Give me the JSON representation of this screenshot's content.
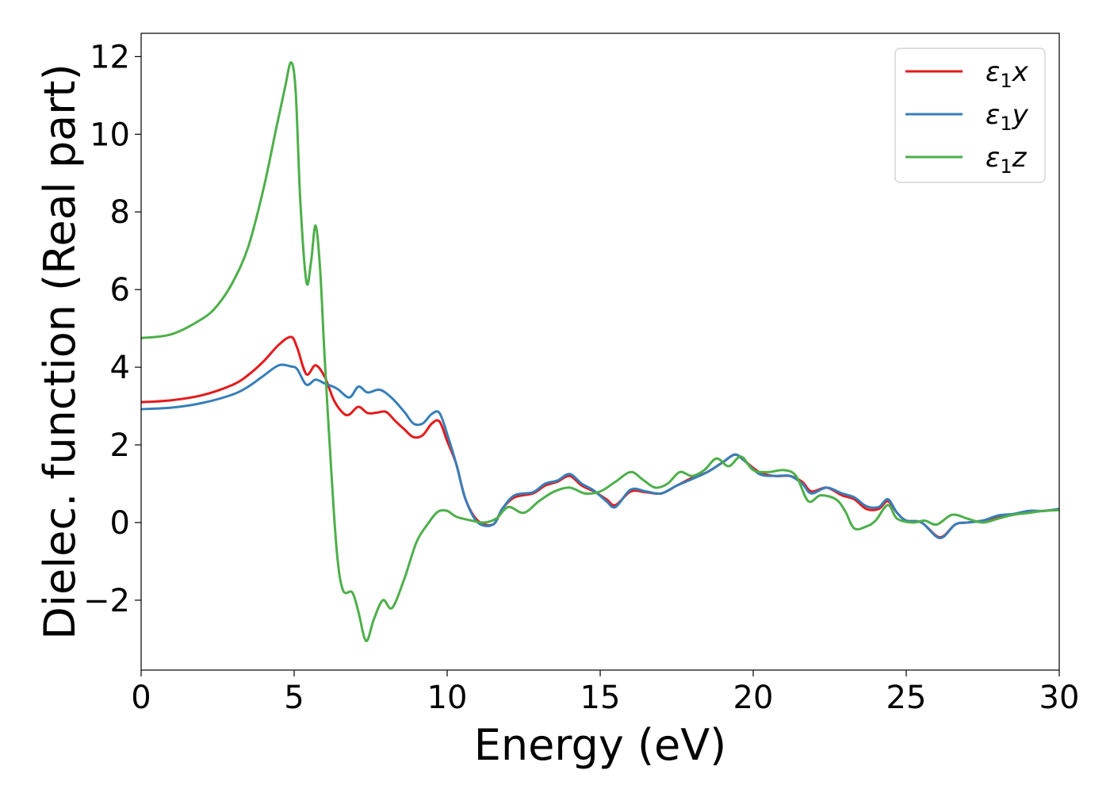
{
  "chart_data": {
    "type": "line",
    "xlabel": "Energy (eV)",
    "ylabel": "Dielec. function (Real part)",
    "xlim": [
      0,
      30
    ],
    "ylim": [
      -3.8,
      12.6
    ],
    "xticks": [
      0,
      5,
      10,
      15,
      20,
      25,
      30
    ],
    "xtick_labels": [
      "0",
      "5",
      "10",
      "15",
      "20",
      "25",
      "30"
    ],
    "yticks": [
      -2,
      0,
      2,
      4,
      6,
      8,
      10,
      12
    ],
    "ytick_labels": [
      "−2",
      "0",
      "2",
      "4",
      "6",
      "8",
      "10",
      "12"
    ],
    "grid": false,
    "legend_position": "top-right",
    "series": [
      {
        "name": "ε₁x",
        "legend_main": "ε",
        "legend_sub": "1",
        "legend_tail": "x",
        "color": "#e41a1c",
        "points": [
          [
            0,
            3.1
          ],
          [
            1,
            3.15
          ],
          [
            2,
            3.28
          ],
          [
            3,
            3.55
          ],
          [
            3.5,
            3.8
          ],
          [
            4,
            4.15
          ],
          [
            4.5,
            4.58
          ],
          [
            4.9,
            4.78
          ],
          [
            5.1,
            4.5
          ],
          [
            5.4,
            3.82
          ],
          [
            5.7,
            4.05
          ],
          [
            6,
            3.75
          ],
          [
            6.3,
            3.15
          ],
          [
            6.6,
            2.82
          ],
          [
            6.8,
            2.78
          ],
          [
            7.1,
            2.98
          ],
          [
            7.4,
            2.82
          ],
          [
            7.7,
            2.83
          ],
          [
            8,
            2.85
          ],
          [
            8.3,
            2.62
          ],
          [
            8.6,
            2.4
          ],
          [
            8.9,
            2.2
          ],
          [
            9.2,
            2.25
          ],
          [
            9.5,
            2.55
          ],
          [
            9.75,
            2.6
          ],
          [
            10,
            2.1
          ],
          [
            10.3,
            1.5
          ],
          [
            10.6,
            0.6
          ],
          [
            11,
            0.05
          ],
          [
            11.5,
            -0.05
          ],
          [
            11.8,
            0.35
          ],
          [
            12.2,
            0.65
          ],
          [
            12.8,
            0.75
          ],
          [
            13.2,
            0.95
          ],
          [
            13.6,
            1.05
          ],
          [
            14,
            1.2
          ],
          [
            14.4,
            0.95
          ],
          [
            14.8,
            0.8
          ],
          [
            15.2,
            0.6
          ],
          [
            15.5,
            0.45
          ],
          [
            16,
            0.8
          ],
          [
            16.5,
            0.78
          ],
          [
            17,
            0.75
          ],
          [
            17.5,
            0.95
          ],
          [
            18,
            1.15
          ],
          [
            18.5,
            1.3
          ],
          [
            19,
            1.55
          ],
          [
            19.4,
            1.75
          ],
          [
            19.7,
            1.6
          ],
          [
            20.2,
            1.3
          ],
          [
            20.7,
            1.2
          ],
          [
            21.2,
            1.2
          ],
          [
            21.6,
            1.05
          ],
          [
            21.9,
            0.8
          ],
          [
            22.4,
            0.9
          ],
          [
            22.9,
            0.7
          ],
          [
            23.3,
            0.6
          ],
          [
            23.7,
            0.35
          ],
          [
            24.1,
            0.35
          ],
          [
            24.4,
            0.55
          ],
          [
            24.7,
            0.25
          ],
          [
            25,
            0.05
          ],
          [
            25.5,
            0
          ],
          [
            26.1,
            -0.38
          ],
          [
            26.6,
            -0.05
          ],
          [
            27,
            0
          ],
          [
            27.5,
            0.05
          ],
          [
            28,
            0.15
          ],
          [
            28.5,
            0.2
          ],
          [
            29,
            0.28
          ],
          [
            29.5,
            0.3
          ],
          [
            30,
            0.35
          ]
        ]
      },
      {
        "name": "ε₁y",
        "legend_main": "ε",
        "legend_sub": "1",
        "legend_tail": "y",
        "color": "#377eb8",
        "points": [
          [
            0,
            2.92
          ],
          [
            1,
            2.96
          ],
          [
            2,
            3.08
          ],
          [
            3,
            3.3
          ],
          [
            3.5,
            3.5
          ],
          [
            4,
            3.78
          ],
          [
            4.5,
            4.05
          ],
          [
            4.9,
            4.02
          ],
          [
            5.1,
            3.95
          ],
          [
            5.4,
            3.55
          ],
          [
            5.7,
            3.68
          ],
          [
            6,
            3.58
          ],
          [
            6.4,
            3.45
          ],
          [
            6.8,
            3.22
          ],
          [
            7.1,
            3.5
          ],
          [
            7.4,
            3.35
          ],
          [
            7.8,
            3.42
          ],
          [
            8.2,
            3.2
          ],
          [
            8.6,
            2.85
          ],
          [
            8.9,
            2.55
          ],
          [
            9.2,
            2.55
          ],
          [
            9.5,
            2.8
          ],
          [
            9.75,
            2.82
          ],
          [
            10,
            2.28
          ],
          [
            10.3,
            1.5
          ],
          [
            10.6,
            0.6
          ],
          [
            11,
            0
          ],
          [
            11.5,
            -0.05
          ],
          [
            11.8,
            0.35
          ],
          [
            12.2,
            0.7
          ],
          [
            12.8,
            0.78
          ],
          [
            13.2,
            1
          ],
          [
            13.6,
            1.08
          ],
          [
            14,
            1.25
          ],
          [
            14.4,
            1
          ],
          [
            14.8,
            0.82
          ],
          [
            15.2,
            0.55
          ],
          [
            15.5,
            0.4
          ],
          [
            16,
            0.85
          ],
          [
            16.5,
            0.8
          ],
          [
            17,
            0.75
          ],
          [
            17.5,
            0.95
          ],
          [
            18,
            1.12
          ],
          [
            18.5,
            1.3
          ],
          [
            19,
            1.55
          ],
          [
            19.4,
            1.75
          ],
          [
            19.7,
            1.6
          ],
          [
            20.2,
            1.25
          ],
          [
            20.7,
            1.2
          ],
          [
            21.2,
            1.2
          ],
          [
            21.6,
            1
          ],
          [
            21.9,
            0.75
          ],
          [
            22.4,
            0.9
          ],
          [
            22.9,
            0.75
          ],
          [
            23.3,
            0.65
          ],
          [
            23.7,
            0.42
          ],
          [
            24.1,
            0.4
          ],
          [
            24.4,
            0.6
          ],
          [
            24.7,
            0.25
          ],
          [
            25,
            0.05
          ],
          [
            25.5,
            0
          ],
          [
            26.1,
            -0.4
          ],
          [
            26.6,
            -0.05
          ],
          [
            27,
            0
          ],
          [
            27.5,
            0.05
          ],
          [
            28,
            0.18
          ],
          [
            28.5,
            0.22
          ],
          [
            29,
            0.3
          ],
          [
            29.5,
            0.3
          ],
          [
            30,
            0.35
          ]
        ]
      },
      {
        "name": "ε₁z",
        "legend_main": "ε",
        "legend_sub": "1",
        "legend_tail": "z",
        "color": "#4daf4a",
        "points": [
          [
            0,
            4.75
          ],
          [
            1,
            4.85
          ],
          [
            2,
            5.25
          ],
          [
            2.5,
            5.6
          ],
          [
            3,
            6.2
          ],
          [
            3.5,
            7.1
          ],
          [
            4,
            8.6
          ],
          [
            4.4,
            10.1
          ],
          [
            4.7,
            11.2
          ],
          [
            4.9,
            11.85
          ],
          [
            5.05,
            11.1
          ],
          [
            5.2,
            8.3
          ],
          [
            5.4,
            6.2
          ],
          [
            5.55,
            6.7
          ],
          [
            5.7,
            7.65
          ],
          [
            5.85,
            6.5
          ],
          [
            6,
            4.2
          ],
          [
            6.2,
            1.5
          ],
          [
            6.4,
            -0.8
          ],
          [
            6.6,
            -1.75
          ],
          [
            6.9,
            -1.8
          ],
          [
            7.1,
            -2.3
          ],
          [
            7.35,
            -3.05
          ],
          [
            7.6,
            -2.5
          ],
          [
            7.9,
            -2
          ],
          [
            8.2,
            -2.2
          ],
          [
            8.6,
            -1.45
          ],
          [
            9,
            -0.5
          ],
          [
            9.4,
            0
          ],
          [
            9.7,
            0.28
          ],
          [
            10,
            0.3
          ],
          [
            10.3,
            0.15
          ],
          [
            10.8,
            0.05
          ],
          [
            11.2,
            0
          ],
          [
            11.6,
            0.1
          ],
          [
            12,
            0.4
          ],
          [
            12.5,
            0.25
          ],
          [
            13,
            0.55
          ],
          [
            13.5,
            0.8
          ],
          [
            14,
            0.9
          ],
          [
            14.5,
            0.75
          ],
          [
            15,
            0.8
          ],
          [
            15.5,
            1.05
          ],
          [
            16,
            1.3
          ],
          [
            16.4,
            1.1
          ],
          [
            16.8,
            0.9
          ],
          [
            17.2,
            1
          ],
          [
            17.6,
            1.3
          ],
          [
            18,
            1.2
          ],
          [
            18.4,
            1.35
          ],
          [
            18.8,
            1.65
          ],
          [
            19.2,
            1.45
          ],
          [
            19.6,
            1.7
          ],
          [
            20,
            1.35
          ],
          [
            20.5,
            1.3
          ],
          [
            21,
            1.35
          ],
          [
            21.4,
            1.2
          ],
          [
            21.8,
            0.55
          ],
          [
            22.2,
            0.7
          ],
          [
            22.7,
            0.6
          ],
          [
            23,
            0.3
          ],
          [
            23.3,
            -0.15
          ],
          [
            23.7,
            -0.1
          ],
          [
            24,
            0.05
          ],
          [
            24.4,
            0.45
          ],
          [
            24.7,
            0.1
          ],
          [
            25.2,
            0
          ],
          [
            25.6,
            0.05
          ],
          [
            26,
            -0.05
          ],
          [
            26.5,
            0.2
          ],
          [
            27,
            0.1
          ],
          [
            27.5,
            0
          ],
          [
            28,
            0.1
          ],
          [
            28.5,
            0.2
          ],
          [
            29,
            0.25
          ],
          [
            29.5,
            0.3
          ],
          [
            30,
            0.32
          ]
        ]
      }
    ]
  }
}
